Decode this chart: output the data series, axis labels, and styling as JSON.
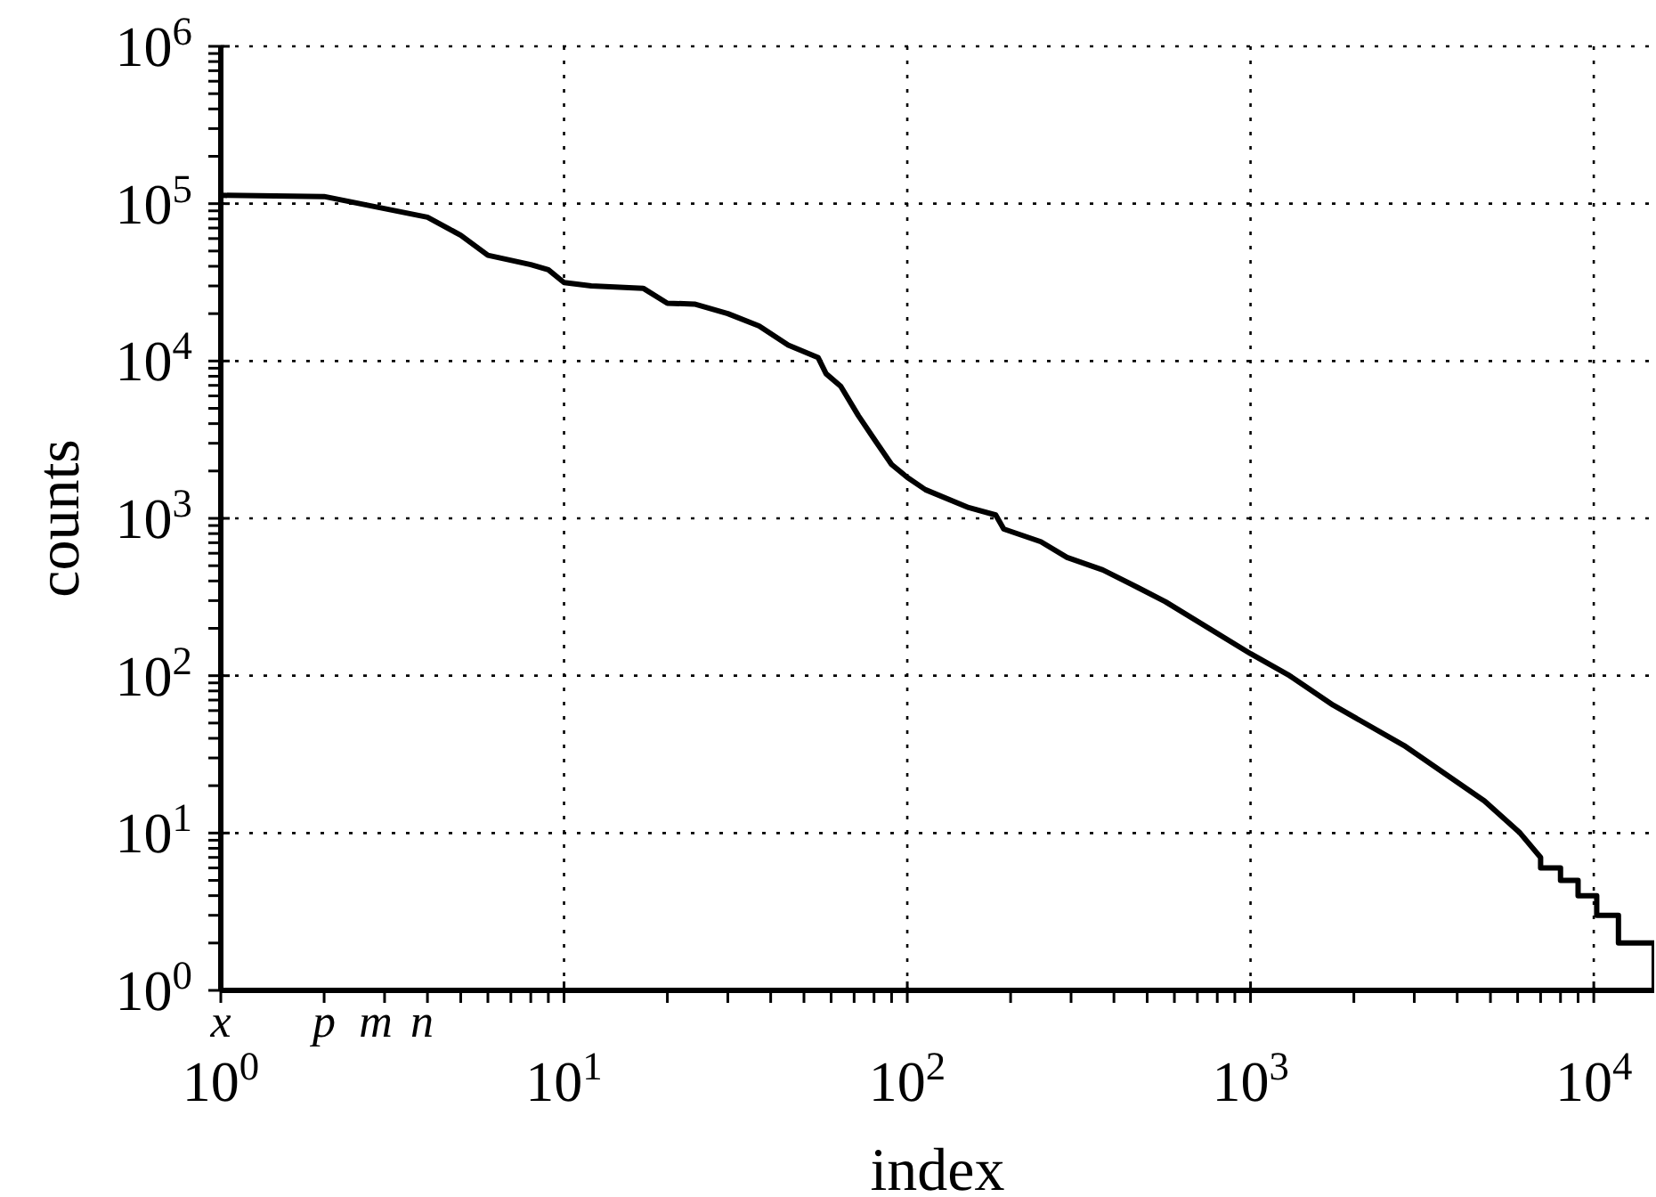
{
  "chart_data": {
    "type": "line",
    "xlabel": "index",
    "ylabel": "counts",
    "log": "xy",
    "grid": true,
    "xlim": [
      1,
      15000
    ],
    "ylim": [
      1,
      1000000
    ],
    "xticks": [
      {
        "value": 1,
        "label": "10$^{0}$"
      },
      {
        "value": 2,
        "label": null
      },
      {
        "value": 3,
        "label": null
      },
      {
        "value": 4,
        "label": null
      },
      {
        "value": 5,
        "label": null
      },
      {
        "value": 6,
        "label": null
      },
      {
        "value": 7,
        "label": null
      },
      {
        "value": 8,
        "label": null
      },
      {
        "value": 9,
        "label": null
      },
      {
        "value": 10,
        "label": "10$^{1}$"
      },
      {
        "value": 20,
        "label": null
      },
      {
        "value": 30,
        "label": null
      },
      {
        "value": 40,
        "label": null
      },
      {
        "value": 50,
        "label": null
      },
      {
        "value": 60,
        "label": null
      },
      {
        "value": 70,
        "label": null
      },
      {
        "value": 80,
        "label": null
      },
      {
        "value": 90,
        "label": null
      },
      {
        "value": 100,
        "label": "10$^{2}$"
      },
      {
        "value": 200,
        "label": null
      },
      {
        "value": 300,
        "label": null
      },
      {
        "value": 400,
        "label": null
      },
      {
        "value": 500,
        "label": null
      },
      {
        "value": 600,
        "label": null
      },
      {
        "value": 700,
        "label": null
      },
      {
        "value": 800,
        "label": null
      },
      {
        "value": 900,
        "label": null
      },
      {
        "value": 1000,
        "label": "10$^{3}$"
      },
      {
        "value": 2000,
        "label": null
      },
      {
        "value": 3000,
        "label": null
      },
      {
        "value": 4000,
        "label": null
      },
      {
        "value": 5000,
        "label": null
      },
      {
        "value": 6000,
        "label": null
      },
      {
        "value": 7000,
        "label": null
      },
      {
        "value": 8000,
        "label": null
      },
      {
        "value": 9000,
        "label": null
      },
      {
        "value": 10000,
        "label": "10$^{4}$"
      }
    ],
    "yticks": [
      {
        "value": 1,
        "label": "10$^{0}$"
      },
      {
        "value": 2,
        "label": null
      },
      {
        "value": 3,
        "label": null
      },
      {
        "value": 4,
        "label": null
      },
      {
        "value": 5,
        "label": null
      },
      {
        "value": 6,
        "label": null
      },
      {
        "value": 7,
        "label": null
      },
      {
        "value": 8,
        "label": null
      },
      {
        "value": 9,
        "label": null
      },
      {
        "value": 10,
        "label": "10$^{1}$"
      },
      {
        "value": 20,
        "label": null
      },
      {
        "value": 30,
        "label": null
      },
      {
        "value": 40,
        "label": null
      },
      {
        "value": 50,
        "label": null
      },
      {
        "value": 60,
        "label": null
      },
      {
        "value": 70,
        "label": null
      },
      {
        "value": 80,
        "label": null
      },
      {
        "value": 90,
        "label": null
      },
      {
        "value": 100,
        "label": "10$^{2}$"
      },
      {
        "value": 200,
        "label": null
      },
      {
        "value": 300,
        "label": null
      },
      {
        "value": 400,
        "label": null
      },
      {
        "value": 500,
        "label": null
      },
      {
        "value": 600,
        "label": null
      },
      {
        "value": 700,
        "label": null
      },
      {
        "value": 800,
        "label": null
      },
      {
        "value": 900,
        "label": null
      },
      {
        "value": 1000,
        "label": "10$^{3}$"
      },
      {
        "value": 2000,
        "label": null
      },
      {
        "value": 3000,
        "label": null
      },
      {
        "value": 4000,
        "label": null
      },
      {
        "value": 5000,
        "label": null
      },
      {
        "value": 6000,
        "label": null
      },
      {
        "value": 7000,
        "label": null
      },
      {
        "value": 8000,
        "label": null
      },
      {
        "value": 9000,
        "label": null
      },
      {
        "value": 10000,
        "label": "10$^{4}$"
      },
      {
        "value": 20000,
        "label": null
      },
      {
        "value": 30000,
        "label": null
      },
      {
        "value": 40000,
        "label": null
      },
      {
        "value": 50000,
        "label": null
      },
      {
        "value": 60000,
        "label": null
      },
      {
        "value": 70000,
        "label": null
      },
      {
        "value": 80000,
        "label": null
      },
      {
        "value": 90000,
        "label": null
      },
      {
        "value": 100000,
        "label": "10$^{5}$"
      },
      {
        "value": 200000,
        "label": null
      },
      {
        "value": 300000,
        "label": null
      },
      {
        "value": 400000,
        "label": null
      },
      {
        "value": 500000,
        "label": null
      },
      {
        "value": 600000,
        "label": null
      },
      {
        "value": 700000,
        "label": null
      },
      {
        "value": 800000,
        "label": null
      },
      {
        "value": 900000,
        "label": null
      },
      {
        "value": 1000000,
        "label": "10$^{6}$"
      }
    ],
    "annotations": [
      "x",
      "p",
      "m",
      "n"
    ],
    "series": [
      {
        "color": "#000000",
        "x": [
          1,
          2,
          4,
          5,
          6,
          8,
          9,
          10,
          12,
          17,
          20,
          24,
          30,
          37,
          45,
          55,
          58,
          64,
          72,
          80,
          90,
          100,
          113,
          151,
          181,
          191,
          245,
          292,
          371,
          470,
          565,
          1000,
          1300,
          1740,
          2800,
          4800,
          6100,
          7000,
          7000,
          8000,
          8000,
          9000,
          9000,
          10200,
          10200,
          11800,
          11800,
          15000,
          15000
        ],
        "values": [
          113000,
          111000,
          82000,
          63000,
          47000,
          41000,
          38000,
          31500,
          30000,
          29000,
          23300,
          23000,
          20000,
          16700,
          12600,
          10500,
          8300,
          6900,
          4500,
          3200,
          2200,
          1820,
          1520,
          1170,
          1050,
          855,
          710,
          565,
          470,
          363,
          295,
          138,
          100,
          65,
          36,
          16,
          10,
          7,
          6,
          6,
          5,
          5,
          4,
          4,
          3,
          3,
          2,
          2,
          1
        ]
      }
    ]
  }
}
